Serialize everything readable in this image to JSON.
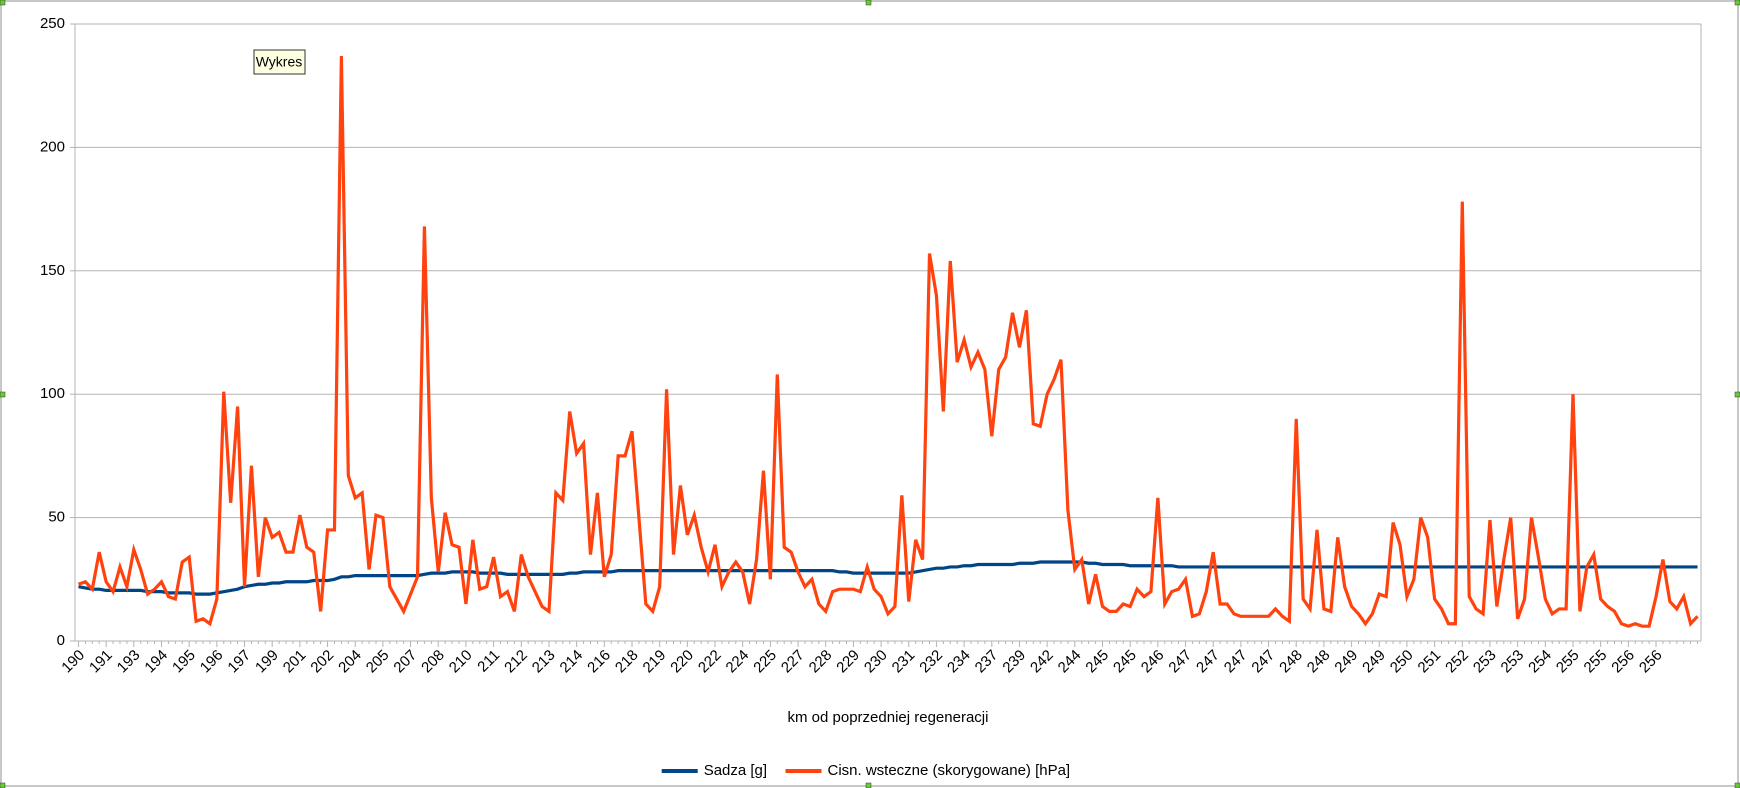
{
  "tooltip": "Wykres",
  "chart_data": {
    "type": "line",
    "x_label": "km od poprzedniej regeneracji",
    "categories": [
      "190",
      null,
      null,
      null,
      "191",
      null,
      null,
      null,
      "193",
      null,
      null,
      null,
      "194",
      null,
      null,
      null,
      "195",
      null,
      null,
      null,
      "196",
      null,
      null,
      null,
      "197",
      null,
      null,
      null,
      "199",
      null,
      null,
      null,
      "201",
      null,
      null,
      null,
      "202",
      null,
      null,
      null,
      "204",
      null,
      null,
      null,
      "205",
      null,
      null,
      null,
      "207",
      null,
      null,
      null,
      "208",
      null,
      null,
      null,
      "210",
      null,
      null,
      null,
      "211",
      null,
      null,
      null,
      "212",
      null,
      null,
      null,
      "213",
      null,
      null,
      null,
      "214",
      null,
      null,
      null,
      "216",
      null,
      null,
      null,
      "218",
      null,
      null,
      null,
      "219",
      null,
      null,
      null,
      "220",
      null,
      null,
      null,
      "222",
      null,
      null,
      null,
      "224",
      null,
      null,
      null,
      "225",
      null,
      null,
      null,
      "227",
      null,
      null,
      null,
      "228",
      null,
      null,
      null,
      "229",
      null,
      null,
      null,
      "230",
      null,
      null,
      null,
      "231",
      null,
      null,
      null,
      "232",
      null,
      null,
      null,
      "234",
      null,
      null,
      null,
      "237",
      null,
      null,
      null,
      "239",
      null,
      null,
      null,
      "242",
      null,
      null,
      null,
      "244",
      null,
      null,
      null,
      "245",
      null,
      null,
      null,
      "245",
      null,
      null,
      null,
      "246",
      null,
      null,
      null,
      "247",
      null,
      null,
      null,
      "247",
      null,
      null,
      null,
      "247",
      null,
      null,
      null,
      "247",
      null,
      null,
      null,
      "248",
      null,
      null,
      null,
      "248",
      null,
      null,
      null,
      "249",
      null,
      null,
      null,
      "249",
      null,
      null,
      null,
      "250",
      null,
      null,
      null,
      "251",
      null,
      null,
      null,
      "252",
      null,
      null,
      null,
      "253",
      null,
      null,
      null,
      "253",
      null,
      null,
      null,
      "254",
      null,
      null,
      null,
      "255",
      null,
      null,
      null,
      "255",
      null,
      null,
      null,
      "256",
      null,
      null,
      null,
      "256",
      null,
      null,
      null,
      null,
      null,
      null
    ],
    "series": [
      {
        "name": "Sadza [g]",
        "color": "#004586",
        "values": [
          22,
          21.5,
          21,
          21,
          20.5,
          20.5,
          20.5,
          20.5,
          20.5,
          20.5,
          20,
          20,
          20,
          19.5,
          19.5,
          19.5,
          19.5,
          19,
          19,
          19,
          19.5,
          20,
          20.5,
          21,
          22,
          22.5,
          23,
          23,
          23.5,
          23.5,
          24,
          24,
          24,
          24,
          24.5,
          24.5,
          24.5,
          25,
          26,
          26,
          26.5,
          26.5,
          26.5,
          26.5,
          26.5,
          26.5,
          26.5,
          26.5,
          26.5,
          26.5,
          27,
          27.5,
          27.5,
          27.5,
          28,
          28,
          28,
          28,
          27.5,
          27.5,
          27.5,
          27.5,
          27,
          27,
          27,
          27,
          27,
          27,
          27,
          27,
          27,
          27.5,
          27.5,
          28,
          28,
          28,
          28,
          28,
          28.5,
          28.5,
          28.5,
          28.5,
          28.5,
          28.5,
          28.5,
          28.5,
          28.5,
          28.5,
          28.5,
          28.5,
          28.5,
          28.5,
          28.5,
          28.5,
          28.5,
          28.5,
          28.5,
          28.5,
          28.5,
          28.5,
          28.5,
          28.5,
          28.5,
          28.5,
          28.5,
          28.5,
          28.5,
          28.5,
          28.5,
          28.5,
          28,
          28,
          27.5,
          27.5,
          27.5,
          27.5,
          27.5,
          27.5,
          27.5,
          27.5,
          27.5,
          28,
          28.5,
          29,
          29.5,
          29.5,
          30,
          30,
          30.5,
          30.5,
          31,
          31,
          31,
          31,
          31,
          31,
          31.5,
          31.5,
          31.5,
          32,
          32,
          32,
          32,
          32,
          32,
          32,
          31.5,
          31.5,
          31,
          31,
          31,
          31,
          30.5,
          30.5,
          30.5,
          30.5,
          30.5,
          30.5,
          30.5,
          30,
          30,
          30,
          30,
          30,
          30,
          30,
          30,
          30,
          30,
          30,
          30,
          30,
          30,
          30,
          30,
          30,
          30,
          30,
          30,
          30,
          30,
          30,
          30,
          30,
          30,
          30,
          30,
          30,
          30,
          30,
          30,
          30,
          30,
          30,
          30,
          30,
          30,
          30,
          30,
          30,
          30,
          30,
          30,
          30,
          30,
          30,
          30,
          30,
          30,
          30,
          30,
          30,
          30,
          30,
          30,
          30,
          30,
          30,
          30,
          30,
          30,
          30,
          30,
          30,
          30,
          30,
          30,
          30,
          30,
          30,
          30,
          30,
          30,
          30,
          30
        ]
      },
      {
        "name": "Cisn. wsteczne (skorygowane) [hPa]",
        "color": "#ff420e",
        "values": [
          23,
          24,
          21,
          36,
          24,
          20,
          30,
          22,
          37,
          29,
          19,
          21,
          24,
          18,
          17,
          32,
          34,
          8,
          9,
          7,
          17,
          101,
          56,
          95,
          22,
          71,
          26,
          50,
          42,
          44,
          36,
          36,
          51,
          38,
          36,
          12,
          45,
          45,
          237,
          67,
          58,
          60,
          29,
          51,
          50,
          22,
          17,
          12,
          19,
          26,
          168,
          58,
          28,
          52,
          39,
          38,
          15,
          41,
          21,
          22,
          34,
          18,
          20,
          12,
          35,
          26,
          20,
          14,
          12,
          60,
          57,
          93,
          76,
          80,
          35,
          60,
          26,
          35,
          75,
          75,
          85,
          50,
          15,
          12,
          22,
          102,
          35,
          63,
          43,
          51,
          38,
          28,
          39,
          22,
          28,
          32,
          28,
          15,
          33,
          69,
          25,
          108,
          38,
          36,
          28,
          22,
          25,
          15,
          12,
          20,
          21,
          21,
          21,
          20,
          30,
          21,
          18,
          11,
          14,
          59,
          16,
          41,
          33,
          157,
          140,
          93,
          154,
          113,
          122,
          111,
          117,
          110,
          83,
          110,
          115,
          133,
          119,
          134,
          88,
          87,
          100,
          106,
          114,
          53,
          29,
          33,
          15,
          27,
          14,
          12,
          12,
          15,
          14,
          21,
          18,
          20,
          58,
          15,
          20,
          21,
          25,
          10,
          11,
          20,
          36,
          15,
          15,
          11,
          10,
          10,
          10,
          10,
          10,
          13,
          10,
          8,
          90,
          17,
          13,
          45,
          13,
          12,
          42,
          22,
          14,
          11,
          7,
          11,
          19,
          18,
          48,
          39,
          18,
          25,
          50,
          42,
          17,
          13,
          7,
          7,
          178,
          18,
          13,
          11,
          49,
          14,
          33,
          50,
          9,
          17,
          50,
          34,
          17,
          11,
          13,
          13,
          100,
          12,
          30,
          35,
          17,
          14,
          12,
          7,
          6,
          7,
          6,
          6,
          18,
          33,
          16,
          13,
          18,
          7,
          10
        ]
      }
    ],
    "ylim": [
      0,
      250
    ],
    "yticks": [
      0,
      50,
      100,
      150,
      200,
      250
    ],
    "grid": true,
    "legend": "bottom"
  }
}
